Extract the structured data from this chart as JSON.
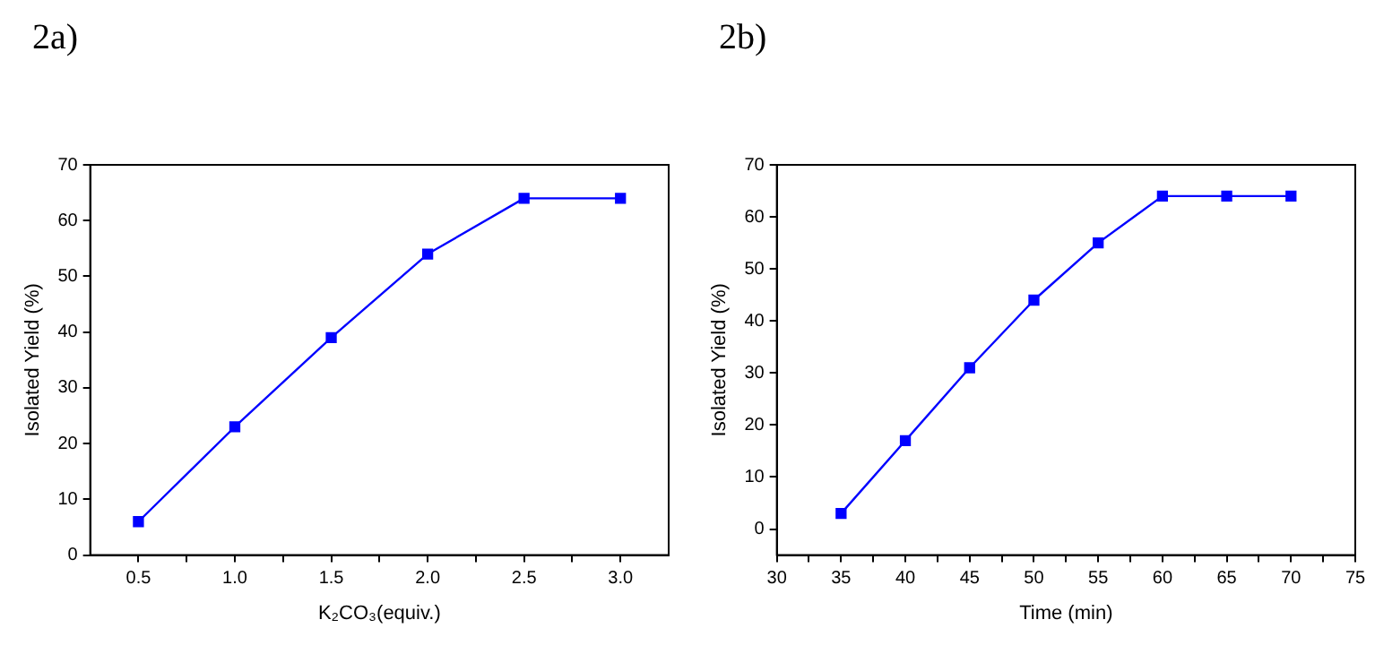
{
  "chart_data": [
    {
      "type": "line",
      "title": "2a)",
      "xlabel": "K₂CO₃(equiv.)",
      "ylabel": "Isolated Yield (%)",
      "x": [
        0.5,
        1.0,
        1.5,
        2.0,
        2.5,
        3.0
      ],
      "series": [
        {
          "color": "#0000ff",
          "values": [
            6,
            23,
            39,
            54,
            64,
            64
          ]
        }
      ],
      "xlim": [
        0.25,
        3.25
      ],
      "xticks": [
        0.5,
        {
          "value": 0.75,
          "label": null
        },
        {
          "value": 1,
          "label": "1.0"
        },
        {
          "value": 1.25,
          "label": null
        },
        1.5,
        {
          "value": 1.75,
          "label": null
        },
        {
          "value": 2,
          "label": "2.0"
        },
        {
          "value": 2.25,
          "label": null
        },
        2.5,
        {
          "value": 2.75,
          "label": null
        },
        {
          "value": 3,
          "label": "3.0"
        }
      ],
      "ylim": [
        0,
        70
      ],
      "yticks": [
        0,
        10,
        20,
        30,
        40,
        50,
        60,
        70
      ],
      "marker": "square",
      "line_style": "solid",
      "grid": false,
      "legend": false
    },
    {
      "type": "line",
      "title": "2b)",
      "xlabel": "Time (min)",
      "ylabel": "Isolated Yield (%)",
      "x": [
        35,
        40,
        45,
        50,
        55,
        60,
        65,
        70
      ],
      "series": [
        {
          "color": "#0000ff",
          "values": [
            3,
            17,
            31,
            44,
            55,
            64,
            64,
            64
          ]
        }
      ],
      "xlim": [
        30,
        75
      ],
      "xticks": [
        30,
        {
          "value": 32.5,
          "label": null
        },
        35,
        {
          "value": 37.5,
          "label": null
        },
        40,
        {
          "value": 42.5,
          "label": null
        },
        45,
        {
          "value": 47.5,
          "label": null
        },
        50,
        {
          "value": 52.5,
          "label": null
        },
        55,
        {
          "value": 57.5,
          "label": null
        },
        60,
        {
          "value": 62.5,
          "label": null
        },
        65,
        {
          "value": 67.5,
          "label": null
        },
        70,
        {
          "value": 72.5,
          "label": null
        },
        75
      ],
      "ylim": [
        -5,
        70
      ],
      "yticks": [
        0,
        10,
        20,
        30,
        40,
        50,
        60,
        70
      ],
      "marker": "square",
      "line_style": "solid",
      "grid": false,
      "legend": false
    }
  ]
}
